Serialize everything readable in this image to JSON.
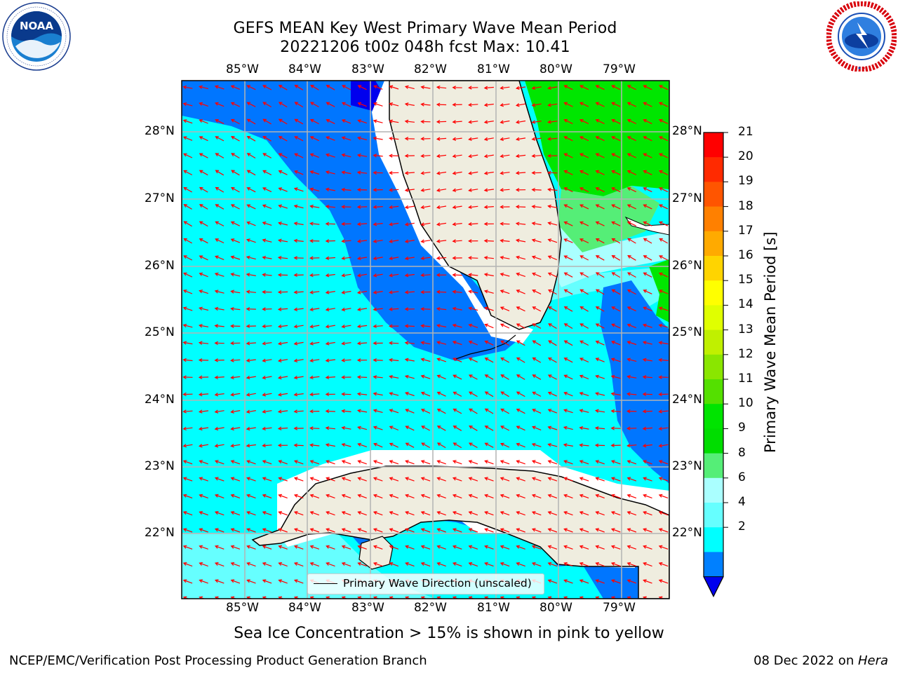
{
  "header": {
    "title_line1": "GEFS MEAN Key West Primary Wave Mean Period",
    "title_line2": "20221206 t00z 048h fcst   Max: 10.41"
  },
  "logos": {
    "noaa_text": "NOAA",
    "noaa_ring_text": "NATIONAL OCEANIC AND ATMOSPHERIC ADMINISTRATION · U.S. DEPARTMENT OF COMMERCE",
    "nws_ring_text": "NATIONAL WEATHER SERVICE"
  },
  "axes": {
    "lon_labels": [
      "85°W",
      "84°W",
      "83°W",
      "82°W",
      "81°W",
      "80°W",
      "79°W"
    ],
    "lat_labels": [
      "28°N",
      "27°N",
      "26°N",
      "25°N",
      "24°N",
      "23°N",
      "22°N"
    ]
  },
  "legend": {
    "label": "Primary Wave Direction (unscaled)"
  },
  "colorbar": {
    "title": "Primary Wave Mean Period [s]",
    "ticks": [
      "21",
      "20",
      "19",
      "18",
      "17",
      "16",
      "15",
      "14",
      "13",
      "12",
      "11",
      "10",
      "9",
      "8",
      "6",
      "4",
      "2"
    ],
    "colors": [
      "#ff0000",
      "#ff2a00",
      "#ff5500",
      "#ff8000",
      "#ffaa00",
      "#ffd400",
      "#ffff00",
      "#e0ff00",
      "#c0f000",
      "#8ae600",
      "#54e000",
      "#00e400",
      "#00dd00",
      "#55ee77",
      "#aaffff",
      "#66ffff",
      "#00ffff",
      "#0080ff"
    ],
    "extend_color": "#0000ee"
  },
  "map": {
    "land_color": "#efeddf",
    "levels": {
      "period_2_4": "#0076ff",
      "period_4_6": "#00ffff",
      "period_6_8": "#66ffff",
      "period_8_9": "#aaffff",
      "period_9_10": "#55ee77",
      "period_10_11": "#00e600",
      "below_2": "#0000ee"
    },
    "arrow_color": "#ff0000"
  },
  "caption": "Sea Ice Concentration > 15% is shown in pink to yellow",
  "footer": {
    "left": "NCEP/EMC/Verification Post Processing Product Generation Branch",
    "date": "08 Dec 2022 on ",
    "host": "Hera"
  }
}
